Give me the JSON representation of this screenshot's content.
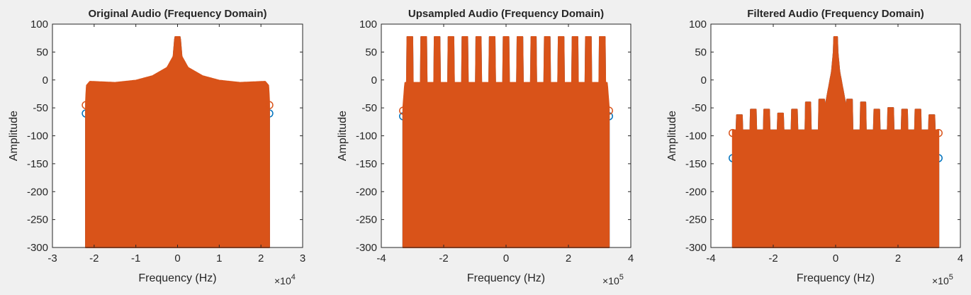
{
  "chart_data": [
    {
      "type": "scatter",
      "title": "Original Audio (Frequency Domain)",
      "xlabel": "Frequency (Hz)",
      "ylabel": "Amplitude",
      "x_exponent": "10^4",
      "xlim": [
        -3,
        3
      ],
      "ylim": [
        -300,
        100
      ],
      "xticks": [
        "-3",
        "-2",
        "-1",
        "0",
        "1",
        "2",
        "3"
      ],
      "yticks": [
        "100",
        "50",
        "0",
        "-50",
        "-100",
        "-150",
        "-200",
        "-250",
        "-300"
      ],
      "grid": false,
      "series": [
        {
          "color": "#0072bd",
          "x": [
            -2.2,
            -2.18,
            -2.1,
            -1.5,
            -1.0,
            -0.6,
            -0.25,
            -0.1,
            -0.06,
            0.06,
            0.1,
            0.25,
            0.6,
            1.0,
            1.5,
            2.1,
            2.18,
            2.2
          ],
          "y": [
            -60,
            -18,
            -10,
            -12,
            -8,
            0,
            15,
            35,
            72,
            72,
            35,
            15,
            0,
            -8,
            -12,
            -10,
            -18,
            -60
          ]
        },
        {
          "color": "#d95319",
          "x": [
            -2.2,
            -2.18,
            -2.1,
            -1.5,
            -1.0,
            -0.6,
            -0.25,
            -0.1,
            -0.06,
            0.06,
            0.1,
            0.25,
            0.6,
            1.0,
            1.5,
            2.1,
            2.18,
            2.2
          ],
          "y": [
            -45,
            -15,
            -8,
            -10,
            -6,
            2,
            17,
            37,
            72,
            72,
            37,
            17,
            2,
            -6,
            -10,
            -8,
            -15,
            -45
          ]
        }
      ]
    },
    {
      "type": "scatter",
      "title": "Upsampled Audio (Frequency Domain)",
      "xlabel": "Frequency (Hz)",
      "ylabel": "Amplitude",
      "x_exponent": "10^5",
      "xlim": [
        -4,
        4
      ],
      "ylim": [
        -300,
        100
      ],
      "xticks": [
        "-4",
        "-2",
        "0",
        "2",
        "4"
      ],
      "yticks": [
        "100",
        "50",
        "0",
        "-50",
        "-100",
        "-150",
        "-200",
        "-250",
        "-300"
      ],
      "grid": false,
      "image_peaks": [
        -3.087,
        -2.646,
        -2.205,
        -1.764,
        -1.323,
        -0.882,
        -0.441,
        0,
        0.441,
        0.882,
        1.323,
        1.764,
        2.205,
        2.646,
        3.087
      ],
      "series": [
        {
          "color": "#0072bd",
          "x_range": [
            -3.3,
            3.3
          ],
          "peak_value": 72,
          "floor_value": -15,
          "edge_value": -65
        },
        {
          "color": "#d95319",
          "x_range": [
            -3.3,
            3.3
          ],
          "peak_value": 72,
          "floor_value": -10,
          "edge_value": -55
        }
      ]
    },
    {
      "type": "scatter",
      "title": "Filtered Audio (Frequency Domain)",
      "xlabel": "Frequency (Hz)",
      "ylabel": "Amplitude",
      "x_exponent": "10^5",
      "xlim": [
        -4,
        4
      ],
      "ylim": [
        -300,
        100
      ],
      "xticks": [
        "-4",
        "-2",
        "0",
        "2",
        "4"
      ],
      "yticks": [
        "100",
        "50",
        "0",
        "-50",
        "-100",
        "-150",
        "-200",
        "-250",
        "-300"
      ],
      "grid": false,
      "center_peak": 72,
      "floor_value": -95,
      "side_peaks": [
        {
          "x": -3.087,
          "y": -68
        },
        {
          "x": -2.646,
          "y": -58
        },
        {
          "x": -2.205,
          "y": -58
        },
        {
          "x": -1.764,
          "y": -65
        },
        {
          "x": -1.323,
          "y": -58
        },
        {
          "x": -0.882,
          "y": -45
        },
        {
          "x": -0.441,
          "y": -40
        },
        {
          "x": 0.441,
          "y": -40
        },
        {
          "x": 0.882,
          "y": -45
        },
        {
          "x": 1.323,
          "y": -58
        },
        {
          "x": 1.764,
          "y": -55
        },
        {
          "x": 2.205,
          "y": -58
        },
        {
          "x": 2.646,
          "y": -58
        },
        {
          "x": 3.087,
          "y": -68
        }
      ],
      "series": [
        {
          "color": "#0072bd",
          "x_range": [
            -3.3,
            3.3
          ],
          "edge_value": -140
        },
        {
          "color": "#d95319",
          "x_range": [
            -3.3,
            3.3
          ],
          "edge_value": -95
        }
      ]
    }
  ]
}
